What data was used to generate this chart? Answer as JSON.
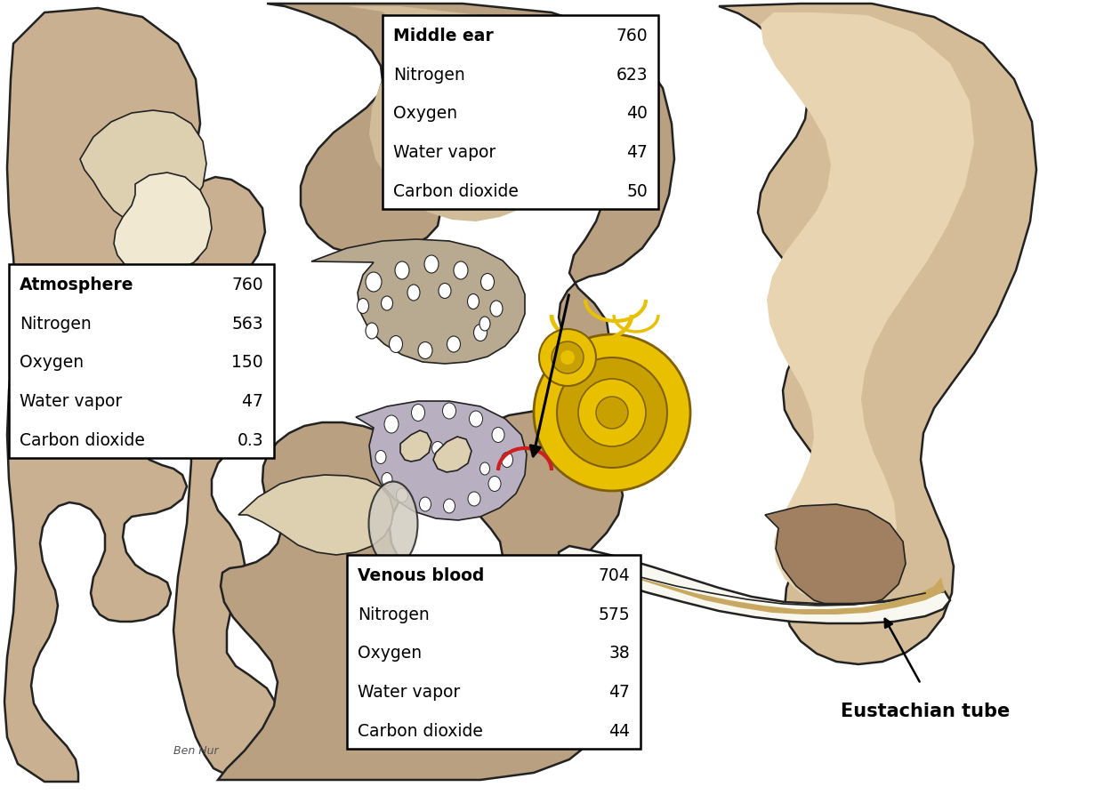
{
  "bg_color": "#ffffff",
  "atmosphere": {
    "header": "Atmosphere",
    "header_value": "760",
    "rows": [
      [
        "Nitrogen",
        "563"
      ],
      [
        "Oxygen",
        "150"
      ],
      [
        "Water vapor",
        "  47"
      ],
      [
        "Carbon dioxide",
        "0.3"
      ]
    ]
  },
  "middle_ear": {
    "header": "Middle ear",
    "header_value": "760",
    "rows": [
      [
        "Nitrogen",
        "623"
      ],
      [
        "Oxygen",
        "40"
      ],
      [
        "Water vapor",
        "47"
      ],
      [
        "Carbon dioxide",
        "50"
      ]
    ]
  },
  "venous_blood": {
    "header": "Venous blood",
    "header_value": "704",
    "rows": [
      [
        "Nitrogen",
        "575"
      ],
      [
        "Oxygen",
        "38"
      ],
      [
        "Water vapor",
        "47"
      ],
      [
        "Carbon dioxide",
        "44"
      ]
    ]
  },
  "eustachian_label": "Eustachian tube",
  "colors": {
    "pinna_fill": "#c8b090",
    "pinna_dark": "#a89070",
    "pinna_light": "#ddd0b0",
    "skull_tan": "#b8a080",
    "skull_light": "#d0bc98",
    "bone_dark": "#a89070",
    "cream": "#f0e8d0",
    "cochlea_yellow": "#e8c000",
    "cochlea_dark_yellow": "#c8a000",
    "cochlea_outline": "#806000",
    "red_nerve": "#cc2020",
    "eust_white": "#f8f8f0",
    "eust_tan": "#c8a860",
    "eust_dark": "#a08040",
    "lavender": "#c8c8d8",
    "lavender_dark": "#9898b0",
    "outline": "#222222",
    "white": "#ffffff",
    "right_skin": "#d4bc98",
    "right_skin_dark": "#c0a880",
    "right_brown": "#a08060",
    "right_inner_light": "#e8d4b0"
  }
}
